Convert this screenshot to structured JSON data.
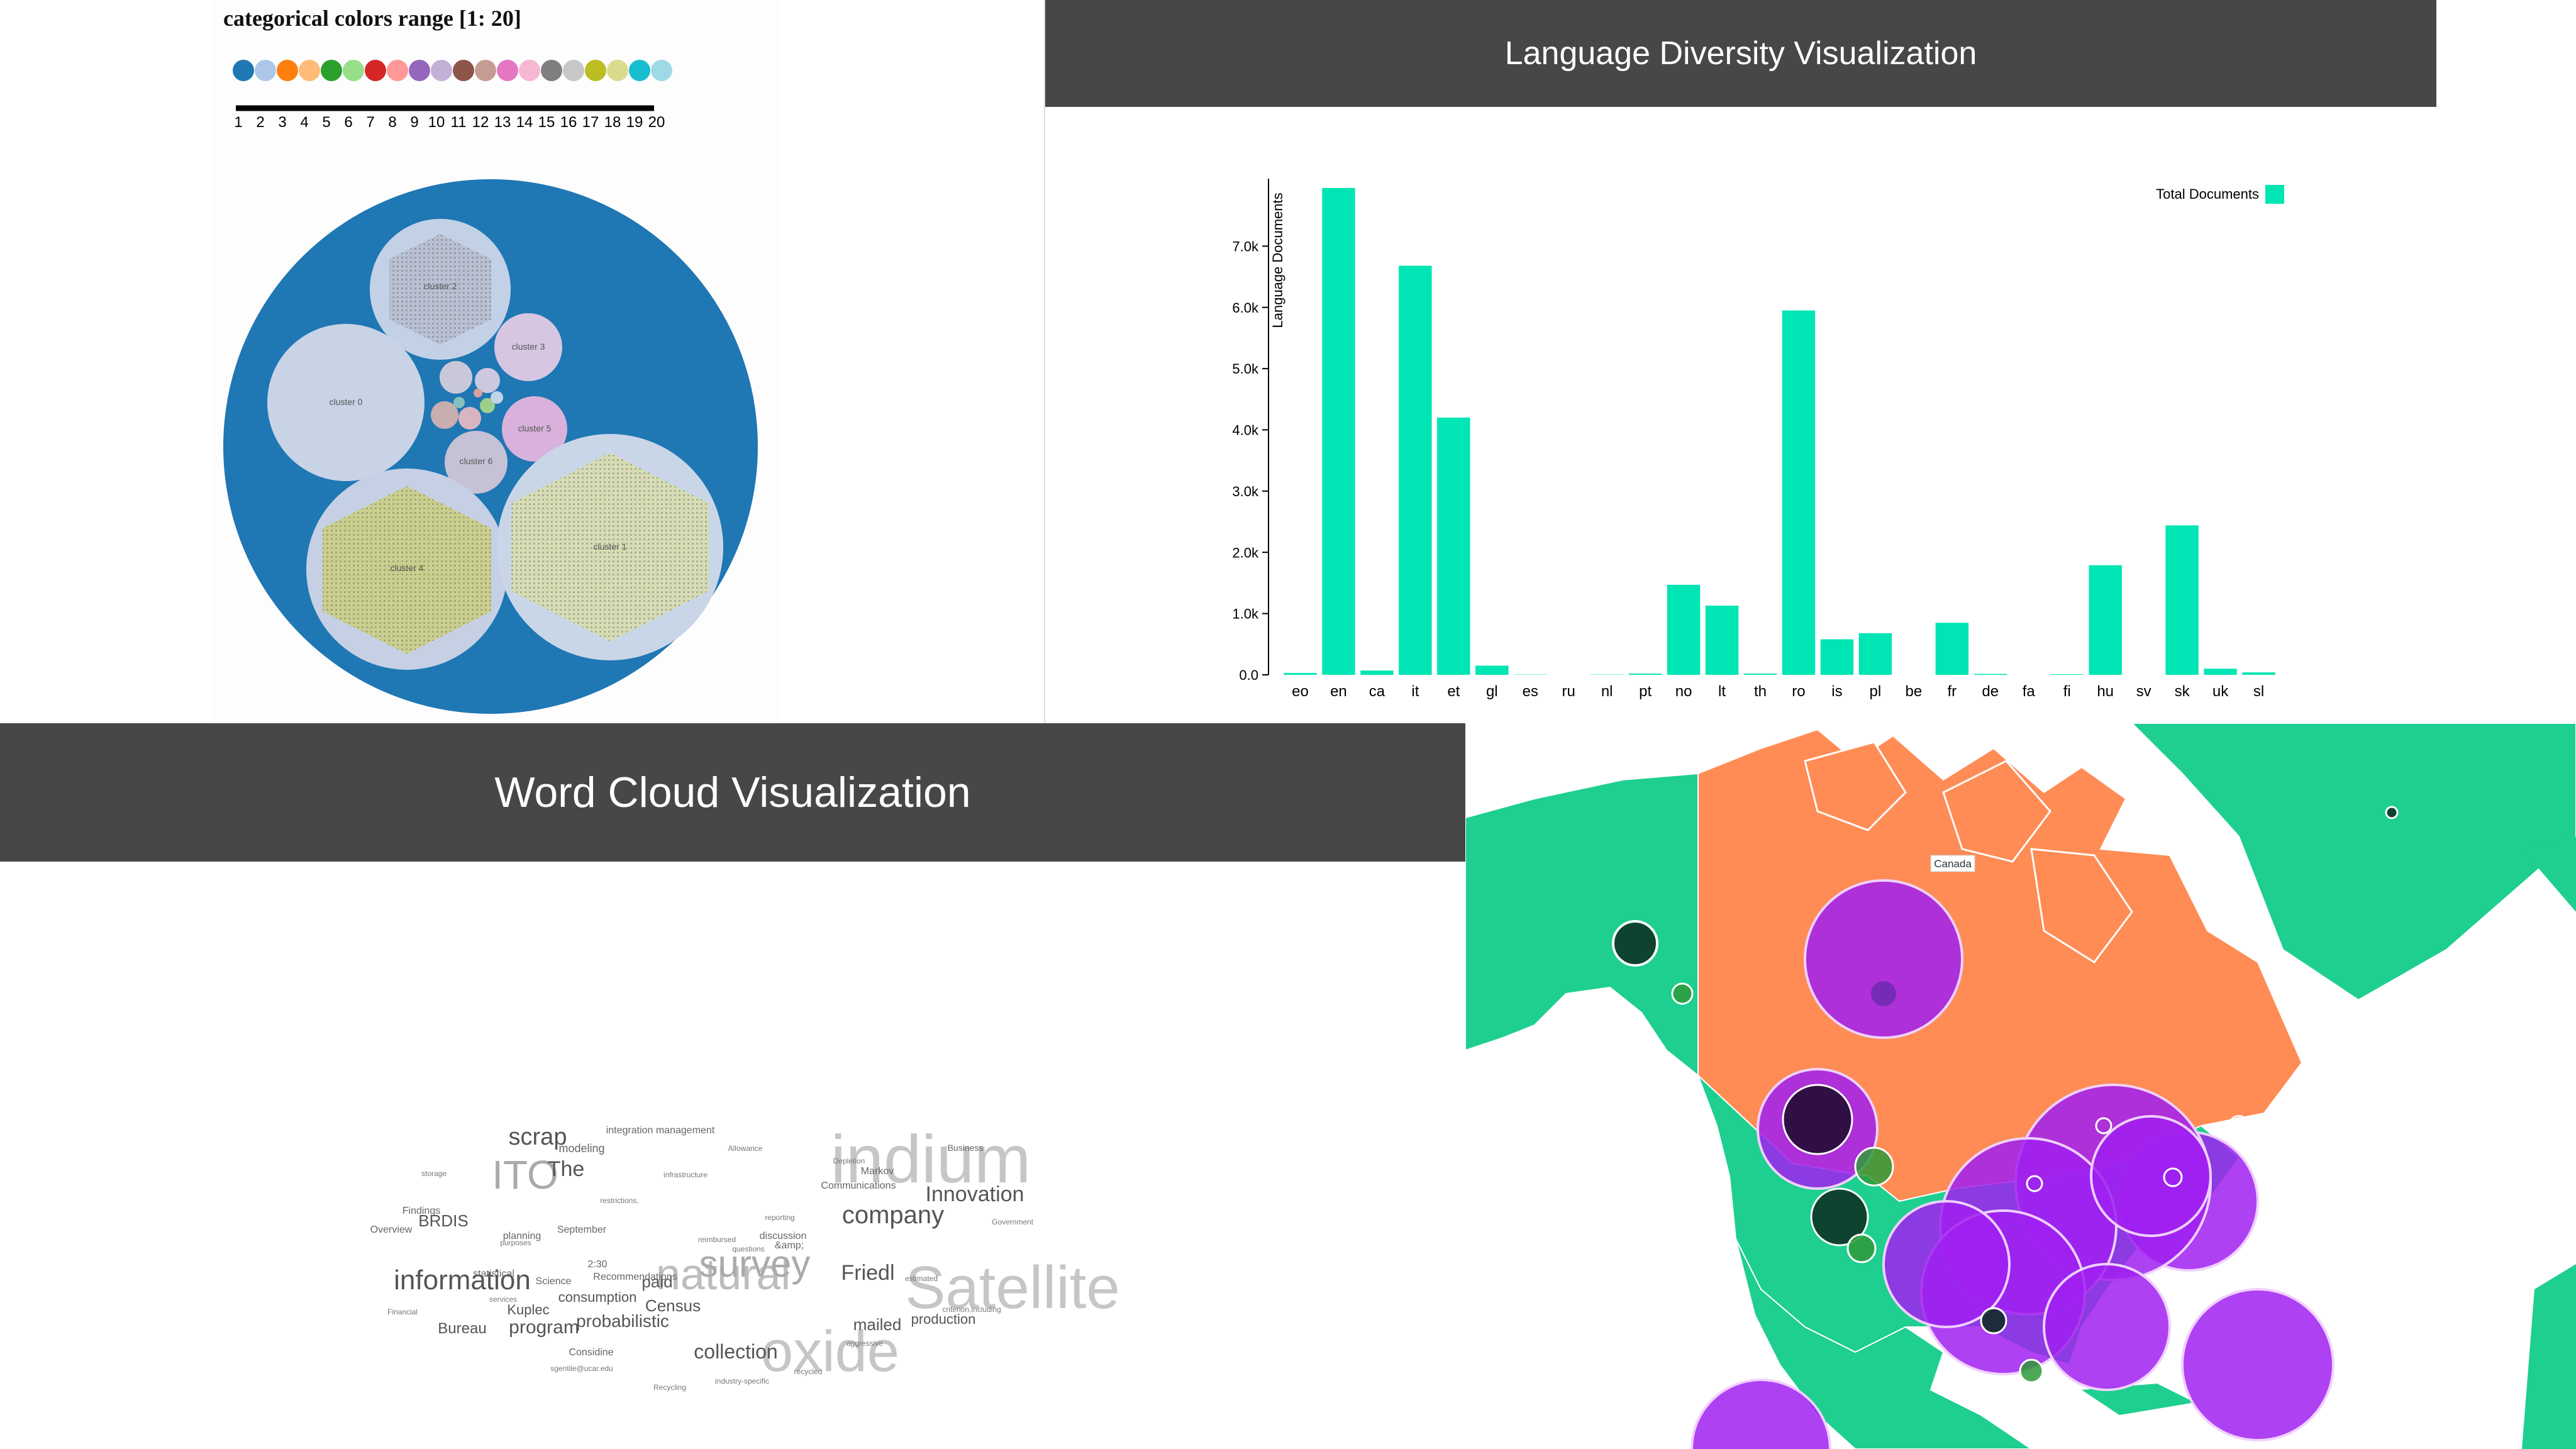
{
  "colors_panel": {
    "title": "categorical colors range [1: 20]",
    "swatches": [
      "#1f77b4",
      "#aec7e8",
      "#ff7f0e",
      "#ffbb78",
      "#2ca02c",
      "#98df8a",
      "#d62728",
      "#ff9896",
      "#9467bd",
      "#c5b0d5",
      "#8c564b",
      "#c49c94",
      "#e377c2",
      "#f7b6d2",
      "#7f7f7f",
      "#c7c7c7",
      "#bcbd22",
      "#dbdb8d",
      "#17becf",
      "#9edae5"
    ],
    "scale_labels": [
      "1",
      "2",
      "3",
      "4",
      "5",
      "6",
      "7",
      "8",
      "9",
      "10",
      "11",
      "12",
      "13",
      "14",
      "15",
      "16",
      "17",
      "18",
      "19",
      "20"
    ],
    "cluster_labels": [
      "cluster 2",
      "cluster 3",
      "cluster 0",
      "cluster 5",
      "cluster 6",
      "cluster 4",
      "cluster 1"
    ]
  },
  "language_panel": {
    "header": "Language Diversity Visualization"
  },
  "wordcloud_panel": {
    "header": "Word Cloud Visualization",
    "words": [
      {
        "text": "indium",
        "size": 108,
        "color": "#c6c6c6"
      },
      {
        "text": "Satellite",
        "size": 96,
        "color": "#c6c6c6"
      },
      {
        "text": "oxide",
        "size": 92,
        "color": "#c6c6c6"
      },
      {
        "text": "natural",
        "size": 70,
        "color": "#bdbdbd"
      },
      {
        "text": "survey",
        "size": 60,
        "color": "#aaaaaa"
      },
      {
        "text": "ITO",
        "size": 64,
        "color": "#aaaaaa"
      },
      {
        "text": "information",
        "size": 44,
        "color": "#555555"
      },
      {
        "text": "company",
        "size": 40,
        "color": "#555555"
      },
      {
        "text": "scrap",
        "size": 38,
        "color": "#555555"
      },
      {
        "text": "Innovation",
        "size": 34,
        "color": "#555555"
      },
      {
        "text": "Friedl",
        "size": 34,
        "color": "#555555"
      },
      {
        "text": "The",
        "size": 34,
        "color": "#555555"
      },
      {
        "text": "collection",
        "size": 32,
        "color": "#555555"
      },
      {
        "text": "program",
        "size": 30,
        "color": "#555555"
      },
      {
        "text": "probabilistic",
        "size": 28,
        "color": "#555555"
      },
      {
        "text": "Census",
        "size": 26,
        "color": "#555555"
      },
      {
        "text": "paid",
        "size": 26,
        "color": "#555555"
      },
      {
        "text": "BRDIS",
        "size": 26,
        "color": "#555555"
      },
      {
        "text": "Bureau",
        "size": 24,
        "color": "#555555"
      },
      {
        "text": "mailed",
        "size": 26,
        "color": "#555555"
      },
      {
        "text": "production",
        "size": 22,
        "color": "#555555"
      },
      {
        "text": "consumption",
        "size": 22,
        "color": "#555555"
      },
      {
        "text": "Kuplec",
        "size": 22,
        "color": "#555555"
      },
      {
        "text": "Considine",
        "size": 16,
        "color": "#666666"
      },
      {
        "text": "modeling",
        "size": 18,
        "color": "#666666"
      },
      {
        "text": "integration management",
        "size": 16,
        "color": "#666666"
      },
      {
        "text": "Communications",
        "size": 16,
        "color": "#666666"
      },
      {
        "text": "Recommendations",
        "size": 16,
        "color": "#666666"
      },
      {
        "text": "Science",
        "size": 16,
        "color": "#666666"
      },
      {
        "text": "Findings",
        "size": 16,
        "color": "#666666"
      },
      {
        "text": "Overview",
        "size": 16,
        "color": "#666666"
      },
      {
        "text": "September",
        "size": 16,
        "color": "#666666"
      },
      {
        "text": "planning",
        "size": 16,
        "color": "#666666"
      },
      {
        "text": "statistical",
        "size": 16,
        "color": "#666666"
      },
      {
        "text": "Markov",
        "size": 16,
        "color": "#666666"
      },
      {
        "text": "Business",
        "size": 14,
        "color": "#666666"
      },
      {
        "text": "discussion",
        "size": 16,
        "color": "#666666"
      },
      {
        "text": "&amp;",
        "size": 16,
        "color": "#666666"
      },
      {
        "text": "2:30",
        "size": 16,
        "color": "#666666"
      },
      {
        "text": "Depletion",
        "size": 12,
        "color": "#777777"
      },
      {
        "text": "industry-specific",
        "size": 12,
        "color": "#777777"
      },
      {
        "text": "Financial",
        "size": 12,
        "color": "#777777"
      },
      {
        "text": "Recycling",
        "size": 12,
        "color": "#777777"
      },
      {
        "text": "criterion,including",
        "size": 12,
        "color": "#777777"
      },
      {
        "text": "infrastructure",
        "size": 12,
        "color": "#777777"
      },
      {
        "text": "reimbursed",
        "size": 12,
        "color": "#777777"
      },
      {
        "text": "estimated",
        "size": 12,
        "color": "#777777"
      },
      {
        "text": "Government",
        "size": 12,
        "color": "#777777"
      },
      {
        "text": "restrictions,",
        "size": 12,
        "color": "#777777"
      },
      {
        "text": "sgentile@ucar.edu",
        "size": 12,
        "color": "#777777"
      },
      {
        "text": "aggressive",
        "size": 12,
        "color": "#777777"
      },
      {
        "text": "recycled",
        "size": 12,
        "color": "#777777"
      },
      {
        "text": "Allowance",
        "size": 12,
        "color": "#777777"
      },
      {
        "text": "questions",
        "size": 12,
        "color": "#777777"
      },
      {
        "text": "reporting",
        "size": 12,
        "color": "#777777"
      },
      {
        "text": "purposes",
        "size": 12,
        "color": "#777777"
      },
      {
        "text": "services",
        "size": 12,
        "color": "#777777"
      },
      {
        "text": "storage",
        "size": 12,
        "color": "#777777"
      }
    ]
  },
  "map_panel": {
    "label": "Canada",
    "colors": {
      "ocean": "#ffffff",
      "land": "#1ecf8f",
      "canada": "#ff8c55",
      "bubble": "#a020f0",
      "dark_bubble": "#0a2a1e",
      "green_bubble": "#2e9a3a"
    }
  },
  "chart_data": [
    {
      "type": "bar",
      "title": "Language Diversity Visualization",
      "xlabel": "",
      "ylabel": "Language Documents",
      "categories": [
        "eo",
        "en",
        "ca",
        "it",
        "et",
        "gl",
        "es",
        "ru",
        "nl",
        "pt",
        "no",
        "lt",
        "th",
        "ro",
        "is",
        "pl",
        "be",
        "fr",
        "de",
        "fa",
        "fi",
        "hu",
        "sv",
        "sk",
        "uk",
        "sl"
      ],
      "series": [
        {
          "name": "Total Documents",
          "values": [
            30,
            7950,
            70,
            6680,
            4200,
            150,
            5,
            0,
            5,
            20,
            1470,
            1130,
            20,
            5950,
            580,
            680,
            0,
            850,
            15,
            0,
            10,
            1790,
            0,
            2440,
            100,
            40
          ]
        }
      ],
      "ylim": [
        0,
        8000
      ],
      "yticks": [
        "0.0",
        "1.0k",
        "2.0k",
        "3.0k",
        "4.0k",
        "5.0k",
        "6.0k",
        "7.0k"
      ],
      "legend": "top-right",
      "grid": false,
      "bar_color": "#00e5b4"
    },
    {
      "type": "scatter",
      "title": "",
      "nodes": [
        {
          "label": "cluster 2",
          "size": 22
        },
        {
          "label": "cluster 3",
          "size": 8
        },
        {
          "label": "cluster 0",
          "size": 32
        },
        {
          "label": "cluster 5",
          "size": 6
        },
        {
          "label": "cluster 6",
          "size": 8
        },
        {
          "label": "cluster 4",
          "size": 46
        },
        {
          "label": "cluster 1",
          "size": 56
        }
      ]
    }
  ]
}
